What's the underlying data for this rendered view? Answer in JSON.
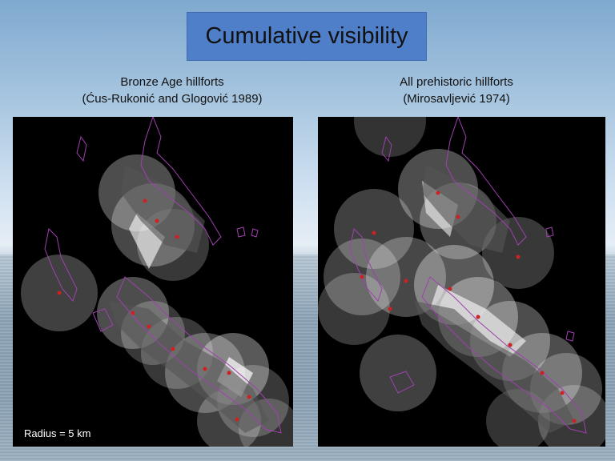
{
  "slide": {
    "title": "Cumulative visibility",
    "left_panel": {
      "caption_line1": "Bronze  Age hillforts",
      "caption_line2": "(Ćus-Rukonić  and Glogović 1989)",
      "radius_label": "Radius = 5 km"
    },
    "right_panel": {
      "caption_line1": "All prehistoric hillforts",
      "caption_line2": "(Mirosavljević  1974)"
    }
  },
  "colors": {
    "title_box": "#4f7fc8",
    "map_background": "#000000",
    "coastline": "#a040b0",
    "hillfort_marker": "#cc2222",
    "viewshed": "#ffffff"
  }
}
